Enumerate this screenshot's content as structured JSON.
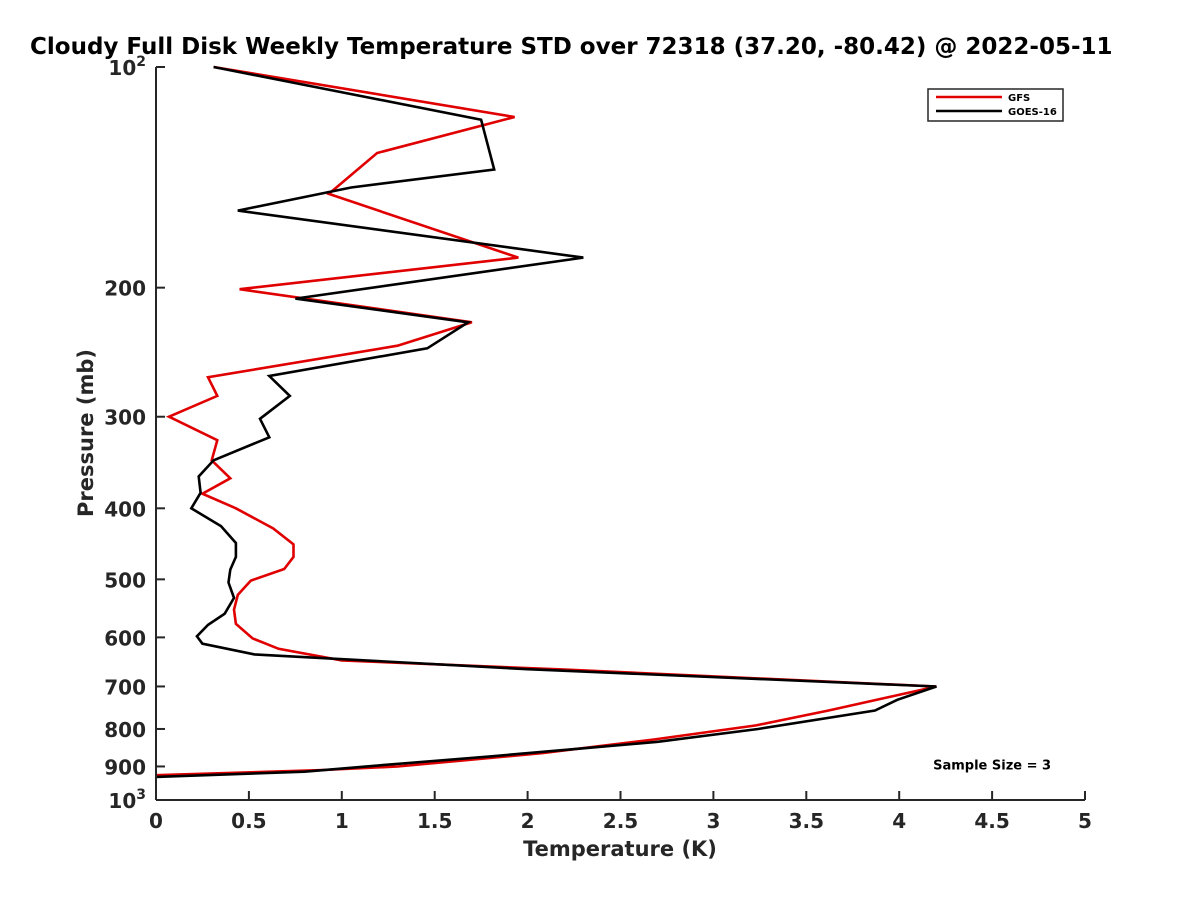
{
  "chart_data": {
    "type": "line",
    "title": "Cloudy Full Disk Weekly Temperature STD over 72318 (37.20, -80.42) @ 2022-05-11",
    "xlabel": "Temperature (K)",
    "ylabel": "Pressure (mb)",
    "xlim": [
      0,
      5
    ],
    "ylim": [
      100,
      1000
    ],
    "yscale": "log",
    "y_reversed": true,
    "x_ticks": [
      0,
      0.5,
      1,
      1.5,
      2,
      2.5,
      3,
      3.5,
      4,
      4.5,
      5
    ],
    "x_tick_labels": [
      "0",
      "0.5",
      "1",
      "1.5",
      "2",
      "2.5",
      "3",
      "3.5",
      "4",
      "4.5",
      "5"
    ],
    "y_ticks": [
      100,
      200,
      300,
      400,
      500,
      600,
      700,
      800,
      900,
      1000
    ],
    "y_tick_labels": [
      {
        "base": "10",
        "exp": "2"
      },
      {
        "base": "200",
        "exp": ""
      },
      {
        "base": "300",
        "exp": ""
      },
      {
        "base": "400",
        "exp": ""
      },
      {
        "base": "500",
        "exp": ""
      },
      {
        "base": "600",
        "exp": ""
      },
      {
        "base": "700",
        "exp": ""
      },
      {
        "base": "800",
        "exp": ""
      },
      {
        "base": "900",
        "exp": ""
      },
      {
        "base": "10",
        "exp": "3"
      }
    ],
    "legend_position": "top-right",
    "series": [
      {
        "name": "GFS",
        "color": "#e00000",
        "points": [
          [
            0.31,
            100
          ],
          [
            1.93,
            117
          ],
          [
            1.19,
            131
          ],
          [
            0.93,
            149
          ],
          [
            1.95,
            182
          ],
          [
            0.45,
            201
          ],
          [
            1.7,
            223
          ],
          [
            1.3,
            240
          ],
          [
            0.28,
            265
          ],
          [
            0.33,
            281
          ],
          [
            0.07,
            300
          ],
          [
            0.33,
            323
          ],
          [
            0.3,
            344
          ],
          [
            0.4,
            364
          ],
          [
            0.25,
            382
          ],
          [
            0.43,
            400
          ],
          [
            0.63,
            426
          ],
          [
            0.74,
            448
          ],
          [
            0.74,
            466
          ],
          [
            0.69,
            484
          ],
          [
            0.51,
            502
          ],
          [
            0.44,
            525
          ],
          [
            0.42,
            550
          ],
          [
            0.43,
            575
          ],
          [
            0.52,
            602
          ],
          [
            0.66,
            622
          ],
          [
            1.0,
            645
          ],
          [
            2.2,
            664
          ],
          [
            4.2,
            700
          ],
          [
            3.62,
            755
          ],
          [
            3.23,
            791
          ],
          [
            2.68,
            827
          ],
          [
            2.08,
            863
          ],
          [
            1.3,
            900
          ],
          [
            0.9,
            910
          ],
          [
            0.0,
            925
          ]
        ]
      },
      {
        "name": "GOES-16",
        "color": "#000000",
        "points": [
          [
            0.31,
            100
          ],
          [
            1.75,
            118
          ],
          [
            1.82,
            138
          ],
          [
            1.05,
            146
          ],
          [
            0.44,
            157
          ],
          [
            2.3,
            182
          ],
          [
            0.75,
            207
          ],
          [
            1.68,
            223
          ],
          [
            1.46,
            242
          ],
          [
            0.61,
            264
          ],
          [
            0.72,
            281
          ],
          [
            0.56,
            302
          ],
          [
            0.61,
            320
          ],
          [
            0.31,
            344
          ],
          [
            0.23,
            362
          ],
          [
            0.24,
            381
          ],
          [
            0.19,
            400
          ],
          [
            0.35,
            423
          ],
          [
            0.43,
            446
          ],
          [
            0.43,
            466
          ],
          [
            0.4,
            485
          ],
          [
            0.39,
            505
          ],
          [
            0.42,
            530
          ],
          [
            0.37,
            557
          ],
          [
            0.28,
            577
          ],
          [
            0.22,
            598
          ],
          [
            0.25,
            612
          ],
          [
            0.53,
            633
          ],
          [
            2.0,
            663
          ],
          [
            4.2,
            700
          ],
          [
            3.99,
            730
          ],
          [
            3.87,
            755
          ],
          [
            3.24,
            800
          ],
          [
            2.7,
            833
          ],
          [
            2.3,
            850
          ],
          [
            1.8,
            872
          ],
          [
            1.2,
            897
          ],
          [
            0.8,
            915
          ],
          [
            0.0,
            930
          ]
        ]
      }
    ],
    "annotations": [
      {
        "text": "Sample Size = 3",
        "x": 4.5,
        "y": 908
      }
    ]
  }
}
